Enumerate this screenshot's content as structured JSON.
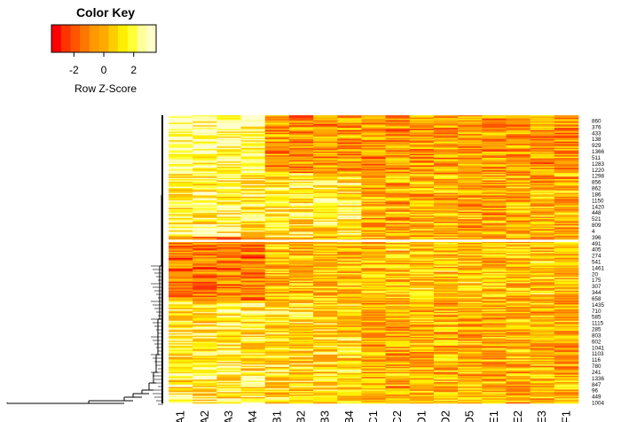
{
  "chart_data": {
    "type": "heatmap",
    "color_key": {
      "title": "Color Key",
      "xlabel": "Row Z-Score",
      "ticks": [
        "-2",
        "0",
        "2"
      ],
      "range": [
        -3.5,
        3.5
      ],
      "colors": [
        "#FF0000",
        "#FF3300",
        "#FF5500",
        "#FF7700",
        "#FF9900",
        "#FFAA00",
        "#FFCC00",
        "#FFEE00",
        "#FFFF33",
        "#FFFF99",
        "#FFFFCC"
      ]
    },
    "columns": [
      "A1",
      "A2",
      "A3",
      "A4",
      "B1",
      "B2",
      "B3",
      "B4",
      "C1",
      "C2",
      "D1",
      "D2",
      "D5",
      "E1",
      "E2",
      "E3",
      "F1"
    ],
    "row_labels": [
      "860",
      "376",
      "433",
      "138",
      "929",
      "1366",
      "511",
      "1283",
      "1220",
      "1298",
      "856",
      "862",
      "186",
      "1150",
      "1420",
      "448",
      "521",
      "809",
      "4",
      "396",
      "491",
      "405",
      "274",
      "541",
      "1461",
      "20",
      "175",
      "307",
      "344",
      "658",
      "1435",
      "710",
      "585",
      "1115",
      "285",
      "803",
      "602",
      "1041",
      "1103",
      "116",
      "780",
      "241",
      "1336",
      "847",
      "96",
      "449",
      "1004"
    ],
    "row_dendrogram": true,
    "column_dendrogram": false,
    "cell_values_shown": false
  }
}
